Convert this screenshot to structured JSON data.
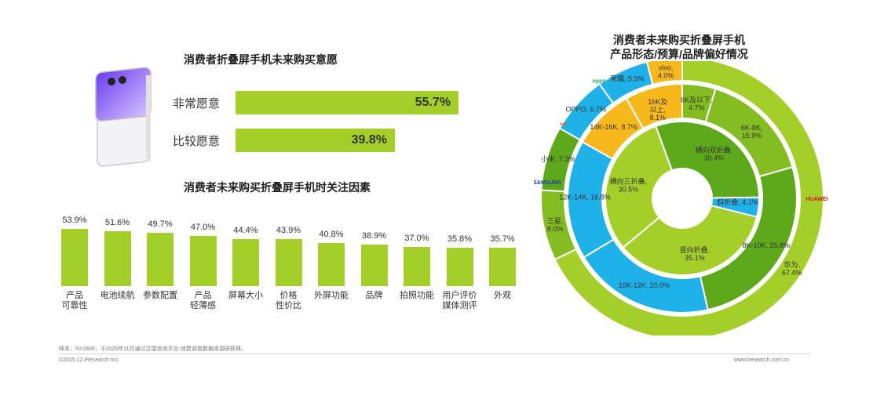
{
  "intent": {
    "title": "消费者折叠屏手机未来购买意愿",
    "items": [
      {
        "label": "非常愿意",
        "value": "55.7%",
        "pct": 55.7
      },
      {
        "label": "比较愿意",
        "value": "39.8%",
        "pct": 39.8
      }
    ]
  },
  "factors": {
    "title": "消费者未来购买折叠屏手机时关注因素",
    "items": [
      {
        "line1": "产品",
        "line2": "可靠性",
        "value": "53.9%",
        "pct": 53.9
      },
      {
        "line1": "电池续航",
        "line2": "",
        "value": "51.6%",
        "pct": 51.6
      },
      {
        "line1": "参数配置",
        "line2": "",
        "value": "49.7%",
        "pct": 49.7
      },
      {
        "line1": "产品",
        "line2": "轻薄感",
        "value": "47.0%",
        "pct": 47.0
      },
      {
        "line1": "屏幕大小",
        "line2": "",
        "value": "44.4%",
        "pct": 44.4
      },
      {
        "line1": "价格",
        "line2": "性价比",
        "value": "43.9%",
        "pct": 43.9
      },
      {
        "line1": "外屏功能",
        "line2": "",
        "value": "40.8%",
        "pct": 40.8
      },
      {
        "line1": "品牌",
        "line2": "",
        "value": "38.9%",
        "pct": 38.9
      },
      {
        "line1": "拍照功能",
        "line2": "",
        "value": "37.0%",
        "pct": 37.0
      },
      {
        "line1": "用户评价",
        "line2": "媒体测评",
        "value": "35.8%",
        "pct": 35.8
      },
      {
        "line1": "外观",
        "line2": "",
        "value": "35.7%",
        "pct": 35.7
      }
    ]
  },
  "donut": {
    "title_line1": "消费者未来购买折叠屏手机",
    "title_line2": "产品形态/预算/品牌偏好情况"
  },
  "chart_data": [
    {
      "type": "bar",
      "title": "消费者折叠屏手机未来购买意愿",
      "categories": [
        "非常愿意",
        "比较愿意"
      ],
      "values": [
        55.7,
        39.8
      ]
    },
    {
      "type": "bar",
      "title": "消费者未来购买折叠屏手机时关注因素",
      "categories": [
        "产品可靠性",
        "电池续航",
        "参数配置",
        "产品轻薄感",
        "屏幕大小",
        "价格性价比",
        "外屏功能",
        "品牌",
        "拍照功能",
        "用户评价媒体测评",
        "外观"
      ],
      "values": [
        53.9,
        51.6,
        49.7,
        47.0,
        44.4,
        43.9,
        40.8,
        38.9,
        37.0,
        35.8,
        35.7
      ]
    },
    {
      "type": "pie",
      "title": "消费者未来购买折叠屏手机 产品形态/预算/品牌偏好情况",
      "rings": [
        {
          "name": "产品形态",
          "slices": [
            {
              "label": "竖向折叠",
              "value": 35.1,
              "text": "竖向折叠,\n35.1%"
            },
            {
              "label": "横向三折叠",
              "value": 30.5,
              "text": "横向三折叠,\n30.5%"
            },
            {
              "label": "横向双折叠",
              "value": 30.4,
              "text": "横向双折叠,\n30.4%"
            },
            {
              "label": "斜折叠",
              "value": 4.1,
              "text": "斜折叠, 4.1%"
            }
          ]
        },
        {
          "name": "预算",
          "slices": [
            {
              "label": "6K及以下",
              "value": 4.7,
              "text": "6K及以下,\n4.7%"
            },
            {
              "label": "6K-8K",
              "value": 15.9,
              "text": "6K-8K,\n15.9%"
            },
            {
              "label": "8K-10K",
              "value": 25.8,
              "text": "8K-10K, 25.8%"
            },
            {
              "label": "10K-12K",
              "value": 20.0,
              "text": "10K-12K, 20.0%"
            },
            {
              "label": "12K-14K",
              "value": 16.8,
              "text": "12K-14K, 16.8%"
            },
            {
              "label": "14K-16K",
              "value": 8.7,
              "text": "14K-16K, 8.7%"
            },
            {
              "label": "16K及以上",
              "value": 8.1,
              "text": "16K及\n以上,\n8.1%"
            }
          ]
        },
        {
          "name": "品牌",
          "slices": [
            {
              "label": "华为",
              "value": 67.4,
              "text": "华为,\n67.4%"
            },
            {
              "label": "三星",
              "value": 8.0,
              "text": "三星,\n8.0%"
            },
            {
              "label": "小米",
              "value": 7.3,
              "text": "小米, 7.3%"
            },
            {
              "label": "OPPO",
              "value": 6.7,
              "text": "OPPO, 6.7%"
            },
            {
              "label": "荣耀",
              "value": 5.9,
              "text": "荣耀, 5.9%"
            },
            {
              "label": "vivo",
              "value": 4.0,
              "text": "vivo,\n4.0%"
            }
          ]
        }
      ],
      "colors": {
        "green_light": "#a4cf28",
        "green_mid": "#84bd22",
        "green_dark": "#5ea91b",
        "blue": "#1eb2e8",
        "orange": "#f6b81a",
        "white": "#ffffff"
      },
      "brand_logos": [
        {
          "text": "HUAWEI",
          "color": "#d71a1a",
          "icon": "huawei-logo-icon"
        },
        {
          "text": "SAMSUNG",
          "color": "#1e3aa8",
          "icon": "samsung-logo-icon"
        },
        {
          "text": "mi",
          "color": "#ff6900",
          "icon": "xiaomi-logo-icon"
        },
        {
          "text": "oppo",
          "color": "#2aa86a",
          "icon": "oppo-logo-icon"
        },
        {
          "text": "HONOR",
          "color": "#111111",
          "icon": "honor-logo-icon"
        },
        {
          "text": "vivo",
          "color": "#3a6fd8",
          "icon": "vivo-logo-icon"
        }
      ]
    }
  ],
  "footer": {
    "note": "样本：N=1800，于2025年11月通过艾瑞咨询平台-消费调查数据库调研获得。",
    "copyright": "©2025.12 iResearch Inc.",
    "site": "www.iresearch.com.cn"
  }
}
